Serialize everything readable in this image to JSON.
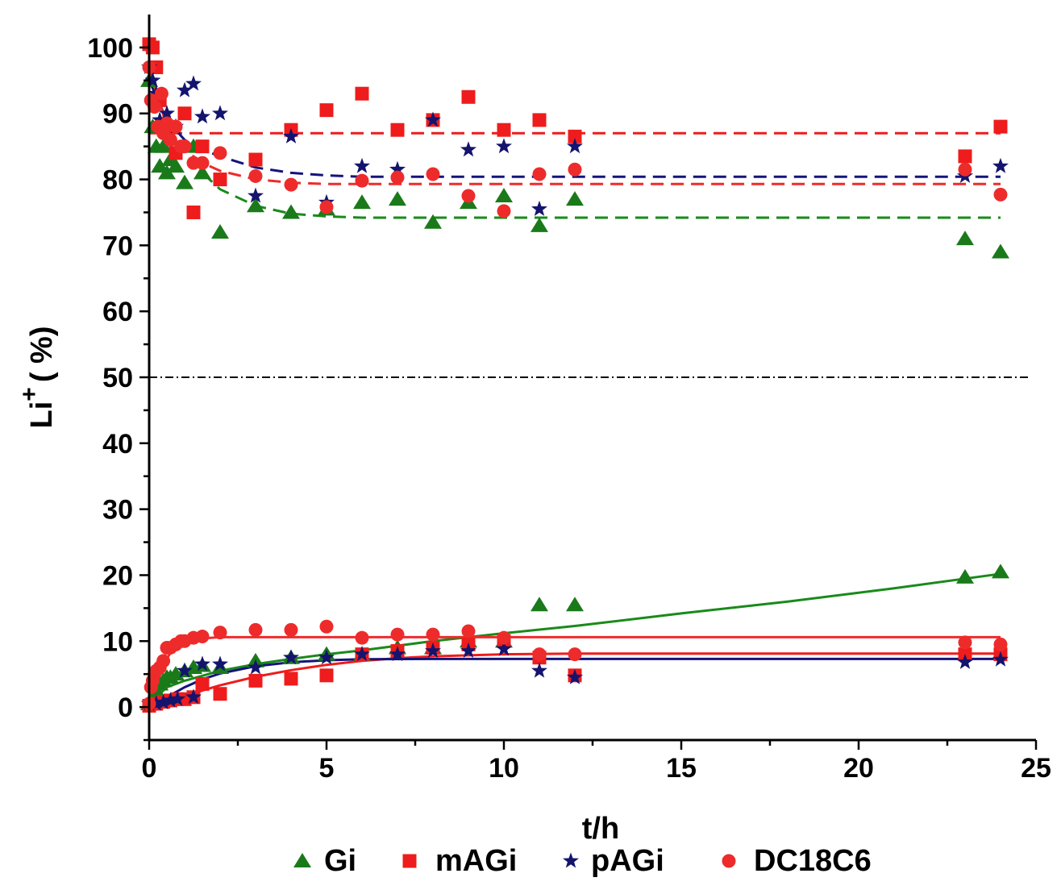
{
  "chart_data": {
    "type": "scatter",
    "xlabel": "t/h",
    "ylabel_main": "Li",
    "ylabel_sup": "+",
    "ylabel_rest": "( %)",
    "xlim": [
      0,
      25
    ],
    "ylim": [
      -5,
      105
    ],
    "xticks": [
      0,
      5,
      10,
      15,
      20,
      25
    ],
    "yticks": [
      0,
      10,
      20,
      30,
      40,
      50,
      60,
      70,
      80,
      90,
      100
    ],
    "reference_line_y": 50,
    "legend_position": "bottom",
    "series": [
      {
        "name": "Gi",
        "color": "#1a7a1a",
        "marker": "triangle",
        "upper_points": [
          [
            0,
            95
          ],
          [
            0.1,
            88
          ],
          [
            0.2,
            85
          ],
          [
            0.3,
            82
          ],
          [
            0.4,
            85
          ],
          [
            0.5,
            81
          ],
          [
            0.6,
            83
          ],
          [
            0.75,
            82
          ],
          [
            1,
            79.5
          ],
          [
            1.25,
            85
          ],
          [
            1.5,
            81
          ],
          [
            2,
            72
          ],
          [
            3,
            76
          ],
          [
            4,
            75
          ],
          [
            5,
            75.5
          ],
          [
            6,
            76.5
          ],
          [
            7,
            77
          ],
          [
            8,
            73.5
          ],
          [
            9,
            76.5
          ],
          [
            10,
            77.5
          ],
          [
            11,
            73
          ],
          [
            12,
            77
          ],
          [
            23,
            71
          ],
          [
            24,
            69
          ]
        ],
        "lower_points": [
          [
            0,
            0.5
          ],
          [
            0.1,
            1.5
          ],
          [
            0.2,
            2.5
          ],
          [
            0.3,
            3.5
          ],
          [
            0.4,
            4
          ],
          [
            0.5,
            4.5
          ],
          [
            0.6,
            4.5
          ],
          [
            0.75,
            5
          ],
          [
            1,
            5.5
          ],
          [
            1.25,
            6
          ],
          [
            1.5,
            6.3
          ],
          [
            2,
            6
          ],
          [
            3,
            7
          ],
          [
            4,
            7.5
          ],
          [
            5,
            8
          ],
          [
            6,
            8
          ],
          [
            7,
            9
          ],
          [
            8,
            9
          ],
          [
            9,
            10
          ],
          [
            10,
            10
          ],
          [
            11,
            15.5
          ],
          [
            12,
            15.5
          ],
          [
            23,
            19.7
          ],
          [
            24,
            20.5
          ]
        ],
        "upper_fit": [
          [
            0,
            97
          ],
          [
            0.5,
            88
          ],
          [
            1,
            84
          ],
          [
            1.5,
            81
          ],
          [
            2,
            78.5
          ],
          [
            3,
            76
          ],
          [
            4,
            74.8
          ],
          [
            5,
            74.4
          ],
          [
            6,
            74.2
          ],
          [
            24,
            74.2
          ]
        ],
        "lower_fit": [
          [
            0,
            0.5
          ],
          [
            0.5,
            3
          ],
          [
            1,
            4
          ],
          [
            2,
            5.5
          ],
          [
            3,
            6.5
          ],
          [
            4,
            7.3
          ],
          [
            5,
            8
          ],
          [
            6,
            8.6
          ],
          [
            7,
            9.3
          ],
          [
            8,
            10
          ],
          [
            10,
            11.2
          ],
          [
            12,
            12.3
          ],
          [
            15,
            14.2
          ],
          [
            18,
            16
          ],
          [
            21,
            18
          ],
          [
            24,
            20.2
          ]
        ]
      },
      {
        "name": "mAGi",
        "color": "#ee1c1c",
        "marker": "square",
        "upper_points": [
          [
            0,
            100.5
          ],
          [
            0.1,
            100
          ],
          [
            0.2,
            97
          ],
          [
            0.3,
            92
          ],
          [
            0.5,
            88
          ],
          [
            0.75,
            84
          ],
          [
            1,
            90
          ],
          [
            1.25,
            75
          ],
          [
            1.5,
            85
          ],
          [
            2,
            80
          ],
          [
            3,
            83
          ],
          [
            4,
            87.5
          ],
          [
            5,
            90.5
          ],
          [
            6,
            93
          ],
          [
            7,
            87.5
          ],
          [
            8,
            89
          ],
          [
            9,
            92.5
          ],
          [
            10,
            87.5
          ],
          [
            11,
            89
          ],
          [
            12,
            86.5
          ],
          [
            23,
            83.5
          ],
          [
            24,
            88
          ]
        ],
        "lower_points": [
          [
            0,
            0.2
          ],
          [
            0.2,
            0.5
          ],
          [
            0.4,
            0.8
          ],
          [
            0.6,
            1
          ],
          [
            0.8,
            1.2
          ],
          [
            1,
            1.2
          ],
          [
            1.25,
            1.5
          ],
          [
            1.5,
            3.5
          ],
          [
            2,
            2
          ],
          [
            3,
            4
          ],
          [
            4,
            4.3
          ],
          [
            5,
            4.8
          ],
          [
            6,
            8
          ],
          [
            7,
            8.5
          ],
          [
            8,
            9
          ],
          [
            9,
            9.5
          ],
          [
            10,
            10
          ],
          [
            11,
            7.5
          ],
          [
            12,
            4.8
          ],
          [
            23,
            8
          ],
          [
            24,
            8
          ]
        ],
        "upper_fit": [
          [
            0,
            87
          ],
          [
            24,
            87
          ]
        ],
        "lower_fit": [
          [
            0,
            0.2
          ],
          [
            0.5,
            0.8
          ],
          [
            1,
            1.6
          ],
          [
            1.5,
            2.5
          ],
          [
            2,
            3.3
          ],
          [
            3,
            4.6
          ],
          [
            4,
            5.6
          ],
          [
            5,
            6.4
          ],
          [
            6,
            7
          ],
          [
            7,
            7.4
          ],
          [
            8,
            7.7
          ],
          [
            10,
            8
          ],
          [
            12,
            8.1
          ],
          [
            24,
            8.1
          ]
        ]
      },
      {
        "name": "pAGi",
        "color": "#14146e",
        "marker": "star",
        "upper_points": [
          [
            0,
            97
          ],
          [
            0.1,
            95
          ],
          [
            0.2,
            93
          ],
          [
            0.3,
            89
          ],
          [
            0.5,
            90
          ],
          [
            0.75,
            88
          ],
          [
            1,
            93.5
          ],
          [
            1.25,
            94.5
          ],
          [
            1.5,
            89.5
          ],
          [
            2,
            90
          ],
          [
            3,
            77.5
          ],
          [
            4,
            86.5
          ],
          [
            5,
            76.5
          ],
          [
            6,
            82
          ],
          [
            7,
            81.5
          ],
          [
            8,
            89
          ],
          [
            9,
            84.5
          ],
          [
            10,
            85
          ],
          [
            11,
            75.5
          ],
          [
            12,
            85
          ],
          [
            23,
            80.5
          ],
          [
            24,
            82
          ]
        ],
        "lower_points": [
          [
            0,
            0.5
          ],
          [
            0.2,
            0.5
          ],
          [
            0.4,
            0.7
          ],
          [
            0.6,
            1
          ],
          [
            0.8,
            1.2
          ],
          [
            1,
            5.5
          ],
          [
            1.25,
            1.5
          ],
          [
            1.5,
            6.5
          ],
          [
            2,
            6.5
          ],
          [
            3,
            6
          ],
          [
            4,
            7.5
          ],
          [
            5,
            7.5
          ],
          [
            6,
            8
          ],
          [
            7,
            8
          ],
          [
            8,
            8.5
          ],
          [
            9,
            8.5
          ],
          [
            10,
            8.8
          ],
          [
            11,
            5.5
          ],
          [
            12,
            4.5
          ],
          [
            23,
            6.8
          ],
          [
            24,
            7.2
          ]
        ],
        "upper_fit": [
          [
            0,
            95
          ],
          [
            0.5,
            89
          ],
          [
            1,
            86
          ],
          [
            1.5,
            84.5
          ],
          [
            2,
            83.5
          ],
          [
            3,
            81.8
          ],
          [
            4,
            81
          ],
          [
            5,
            80.6
          ],
          [
            6,
            80.4
          ],
          [
            24,
            80.4
          ]
        ],
        "lower_fit": [
          [
            0,
            0.3
          ],
          [
            0.5,
            1.5
          ],
          [
            1,
            3
          ],
          [
            1.5,
            4.2
          ],
          [
            2,
            5.1
          ],
          [
            3,
            6.2
          ],
          [
            4,
            6.8
          ],
          [
            5,
            7.1
          ],
          [
            6,
            7.25
          ],
          [
            8,
            7.3
          ],
          [
            24,
            7.3
          ]
        ]
      },
      {
        "name": "DC18C6",
        "color": "#ee2b2b",
        "marker": "circle",
        "upper_points": [
          [
            0,
            97
          ],
          [
            0.05,
            92
          ],
          [
            0.15,
            91
          ],
          [
            0.25,
            88
          ],
          [
            0.35,
            93
          ],
          [
            0.4,
            87
          ],
          [
            0.5,
            88.5
          ],
          [
            0.6,
            86
          ],
          [
            0.75,
            88
          ],
          [
            0.9,
            85
          ],
          [
            1,
            85
          ],
          [
            1.25,
            82.5
          ],
          [
            1.5,
            82.5
          ],
          [
            2,
            84
          ],
          [
            3,
            80.5
          ],
          [
            4,
            79.2
          ],
          [
            5,
            75.8
          ],
          [
            6,
            79.8
          ],
          [
            7,
            80.3
          ],
          [
            8,
            80.8
          ],
          [
            9,
            77.5
          ],
          [
            10,
            75.2
          ],
          [
            11,
            80.8
          ],
          [
            12,
            81.5
          ],
          [
            23,
            81.5
          ],
          [
            24,
            77.7
          ]
        ],
        "lower_points": [
          [
            0,
            0.5
          ],
          [
            0.05,
            3
          ],
          [
            0.1,
            4
          ],
          [
            0.15,
            5
          ],
          [
            0.2,
            5.5
          ],
          [
            0.3,
            6
          ],
          [
            0.4,
            7
          ],
          [
            0.5,
            9
          ],
          [
            0.6,
            9
          ],
          [
            0.75,
            9.5
          ],
          [
            0.9,
            10
          ],
          [
            1,
            10
          ],
          [
            1.25,
            10.5
          ],
          [
            1.5,
            10.7
          ],
          [
            2,
            11.3
          ],
          [
            3,
            11.7
          ],
          [
            4,
            11.7
          ],
          [
            5,
            12.2
          ],
          [
            6,
            10.5
          ],
          [
            7,
            11
          ],
          [
            8,
            11
          ],
          [
            9,
            11.5
          ],
          [
            10,
            10.5
          ],
          [
            11,
            8
          ],
          [
            12,
            8
          ],
          [
            23,
            9.8
          ],
          [
            24,
            9.5
          ]
        ],
        "upper_fit": [
          [
            0,
            97
          ],
          [
            0.5,
            88
          ],
          [
            1,
            84.5
          ],
          [
            1.5,
            82.5
          ],
          [
            2,
            81.3
          ],
          [
            3,
            80
          ],
          [
            4,
            79.5
          ],
          [
            5,
            79.3
          ],
          [
            24,
            79.3
          ]
        ],
        "lower_fit": [
          [
            0,
            1.5
          ],
          [
            0.2,
            4
          ],
          [
            0.4,
            6.5
          ],
          [
            0.6,
            8.2
          ],
          [
            0.8,
            9.3
          ],
          [
            1,
            10
          ],
          [
            1.5,
            10.4
          ],
          [
            2,
            10.6
          ],
          [
            3,
            10.6
          ],
          [
            24,
            10.6
          ]
        ]
      }
    ]
  }
}
